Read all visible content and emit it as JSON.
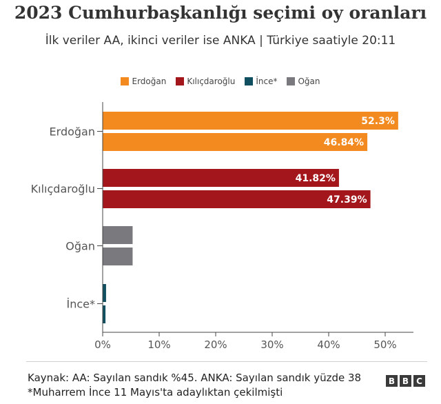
{
  "chart_data": {
    "type": "bar",
    "orientation": "horizontal",
    "title": "2023 Cumhurbaşkanlığı seçimi oy oranları",
    "subtitle": "İlk veriler AA, ikinci veriler ise ANKA | Türkiye saatiyle 20:11",
    "categories": [
      "Erdoğan",
      "Kılıçdaroğlu",
      "Oğan",
      "İnce*"
    ],
    "series": [
      {
        "name": "AA",
        "values": [
          52.3,
          41.82,
          5.3,
          0.6
        ],
        "labels": [
          "52.3%",
          "41.82%",
          "",
          ""
        ]
      },
      {
        "name": "ANKA",
        "values": [
          46.84,
          47.39,
          5.3,
          0.5
        ],
        "labels": [
          "46.84%",
          "47.39%",
          "",
          ""
        ]
      }
    ],
    "bar_colors": [
      "#f28a20",
      "#a3161b",
      "#7a7a7e",
      "#0f4f5f"
    ],
    "legend": {
      "position": "top-center",
      "items": [
        {
          "label": "Erdoğan",
          "color": "#f28a20"
        },
        {
          "label": "Kılıçdaroğlu",
          "color": "#a3161b"
        },
        {
          "label": "İnce*",
          "color": "#0f4f5f"
        },
        {
          "label": "Oğan",
          "color": "#7a7a7e"
        }
      ]
    },
    "xlim": [
      0,
      55
    ],
    "xticks": [
      0,
      10,
      20,
      30,
      40,
      50
    ],
    "xtick_labels": [
      "0%",
      "10%",
      "20%",
      "30%",
      "40%",
      "50%"
    ],
    "grid": false
  },
  "source": "Kaynak: AA: Sayılan sandık %45. ANKA: Sayılan sandık yüzde 38 *Muharrem İnce 11 Mayıs'ta adaylıktan çekilmişti",
  "logo": "BBC"
}
